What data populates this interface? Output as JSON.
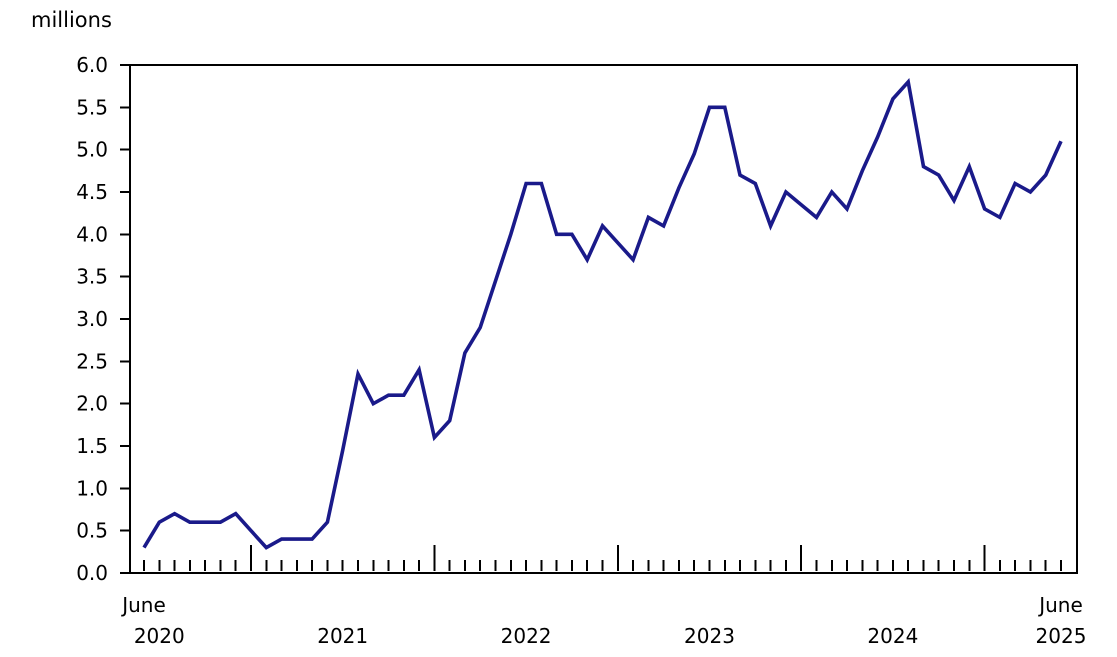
{
  "chart": {
    "unit_label": "millions",
    "line_color": "#1a1a8a",
    "axis_color": "#000000",
    "background": "#ffffff"
  },
  "chart_data": {
    "type": "line",
    "title": "",
    "ylabel": "millions",
    "xlabel": "",
    "grid": false,
    "legend": "none",
    "ylim": [
      0,
      6
    ],
    "ytick_step": 0.5,
    "ytick_labels": [
      "0.0",
      "0.5",
      "1.0",
      "1.5",
      "2.0",
      "2.5",
      "3.0",
      "3.5",
      "4.0",
      "4.5",
      "5.0",
      "5.5",
      "6.0"
    ],
    "x": [
      "2020-06",
      "2020-07",
      "2020-08",
      "2020-09",
      "2020-10",
      "2020-11",
      "2020-12",
      "2021-01",
      "2021-02",
      "2021-03",
      "2021-04",
      "2021-05",
      "2021-06",
      "2021-07",
      "2021-08",
      "2021-09",
      "2021-10",
      "2021-11",
      "2021-12",
      "2022-01",
      "2022-02",
      "2022-03",
      "2022-04",
      "2022-05",
      "2022-06",
      "2022-07",
      "2022-08",
      "2022-09",
      "2022-10",
      "2022-11",
      "2022-12",
      "2023-01",
      "2023-02",
      "2023-03",
      "2023-04",
      "2023-05",
      "2023-06",
      "2023-07",
      "2023-08",
      "2023-09",
      "2023-10",
      "2023-11",
      "2023-12",
      "2024-01",
      "2024-02",
      "2024-03",
      "2024-04",
      "2024-05",
      "2024-06",
      "2024-07",
      "2024-08",
      "2024-09",
      "2024-10",
      "2024-11",
      "2024-12",
      "2025-01",
      "2025-02",
      "2025-03",
      "2025-04",
      "2025-05",
      "2025-06"
    ],
    "values": [
      0.3,
      0.6,
      0.7,
      0.6,
      0.6,
      0.6,
      0.7,
      0.5,
      0.3,
      0.4,
      0.4,
      0.4,
      0.6,
      1.45,
      2.35,
      2.0,
      2.1,
      2.1,
      2.4,
      1.6,
      1.8,
      2.6,
      2.9,
      3.45,
      4.0,
      4.6,
      4.6,
      4.0,
      4.0,
      3.7,
      4.1,
      3.9,
      3.7,
      4.2,
      4.1,
      4.55,
      4.95,
      5.5,
      5.5,
      4.7,
      4.6,
      4.1,
      4.5,
      4.35,
      4.2,
      4.5,
      4.3,
      4.75,
      5.15,
      5.6,
      5.8,
      4.8,
      4.7,
      4.4,
      4.8,
      4.3,
      4.2,
      4.6,
      4.5,
      4.7,
      5.1
    ],
    "xtick_labels": [
      {
        "text": "June",
        "row": 1,
        "month": 0
      },
      {
        "text": "2020",
        "row": 2,
        "month": 1
      },
      {
        "text": "2021",
        "row": 2,
        "month": 13
      },
      {
        "text": "2022",
        "row": 2,
        "month": 25
      },
      {
        "text": "2023",
        "row": 2,
        "month": 37
      },
      {
        "text": "2024",
        "row": 2,
        "month": 49
      },
      {
        "text": "June",
        "row": 1,
        "month": 60
      },
      {
        "text": "2025",
        "row": 2,
        "month": 60
      }
    ]
  }
}
